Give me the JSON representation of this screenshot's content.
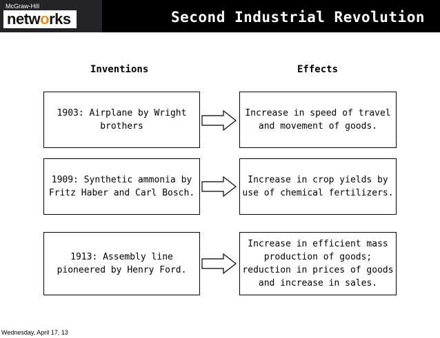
{
  "header": {
    "logo_small": "McGraw-Hill",
    "logo_part1": "netw",
    "logo_o": "o",
    "logo_part2": "rks",
    "title": "Second Industrial Revolution"
  },
  "columns": {
    "inventions": "Inventions",
    "effects": "Effects"
  },
  "rows": [
    {
      "invention": "1903: Airplane by Wright brothers",
      "effect": "Increase in speed of travel and movement of goods."
    },
    {
      "invention": "1909: Synthetic ammonia by Fritz Haber and Carl Bosch.",
      "effect": "Increase in crop yields by use of chemical fertilizers."
    },
    {
      "invention": "1913: Assembly line pioneered by Henry Ford.",
      "effect": "Increase in efficient mass production of goods; reduction in prices of goods and increase in sales."
    }
  ],
  "footer": {
    "date": "Wednesday, April 17, 13"
  }
}
